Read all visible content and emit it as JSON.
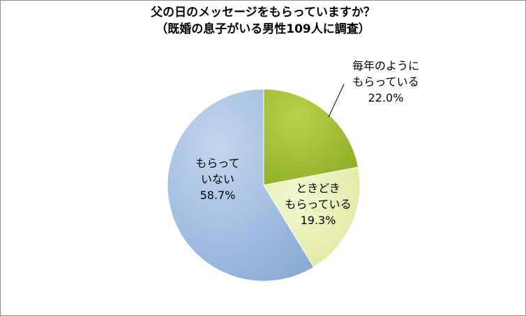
{
  "chart_data": {
    "type": "pie",
    "title": "父の日のメッセージをもらっていますか？",
    "subtitle": "（既婚の息子がいる男性109人に調査）",
    "slices": [
      {
        "label_lines": [
          "毎年のように",
          "もらっている"
        ],
        "value": 22.0,
        "value_label": "22.0%",
        "color": "#9bbb2d"
      },
      {
        "label_lines": [
          "ときどき",
          "もらっている"
        ],
        "value": 19.3,
        "value_label": "19.3%",
        "color": "#e6eda9"
      },
      {
        "label_lines": [
          "もらって",
          "いない"
        ],
        "value": 58.7,
        "value_label": "58.7%",
        "color": "#9dbce0"
      }
    ]
  }
}
